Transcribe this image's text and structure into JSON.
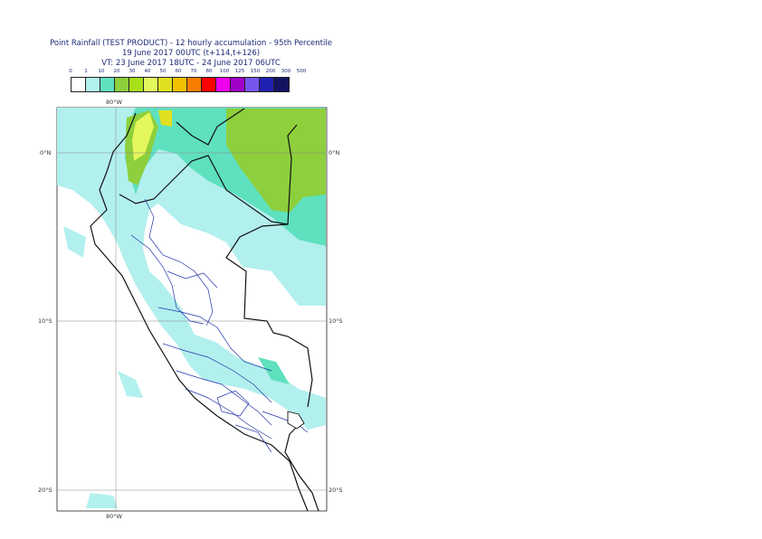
{
  "title": {
    "line1": "Point Rainfall (TEST PRODUCT) - 12 hourly accumulation - 95th Percentile",
    "line2": "19 June 2017 00UTC (t+114,t+126)",
    "line3": "VT: 23 June 2017 18UTC - 24 June 2017 06UTC"
  },
  "legend": {
    "labels": [
      "0",
      "1",
      "10",
      "20",
      "30",
      "40",
      "50",
      "60",
      "70",
      "80",
      "100",
      "125",
      "150",
      "200",
      "300",
      "500"
    ],
    "colors": [
      "#ffffff",
      "#b2f0ee",
      "#5fe0bf",
      "#8dcf3c",
      "#a8e01a",
      "#e4f75c",
      "#e0e020",
      "#f2c100",
      "#f77e00",
      "#ff0000",
      "#ee00ee",
      "#a000c8",
      "#7755ee",
      "#2020b0",
      "#121260"
    ]
  },
  "axes": {
    "lon_top": "80°W",
    "lon_bottom": "80°W",
    "lat_left": [
      "0°N",
      "10°S",
      "20°S"
    ],
    "lat_right": [
      "0°N",
      "10°S",
      "20°S"
    ]
  }
}
